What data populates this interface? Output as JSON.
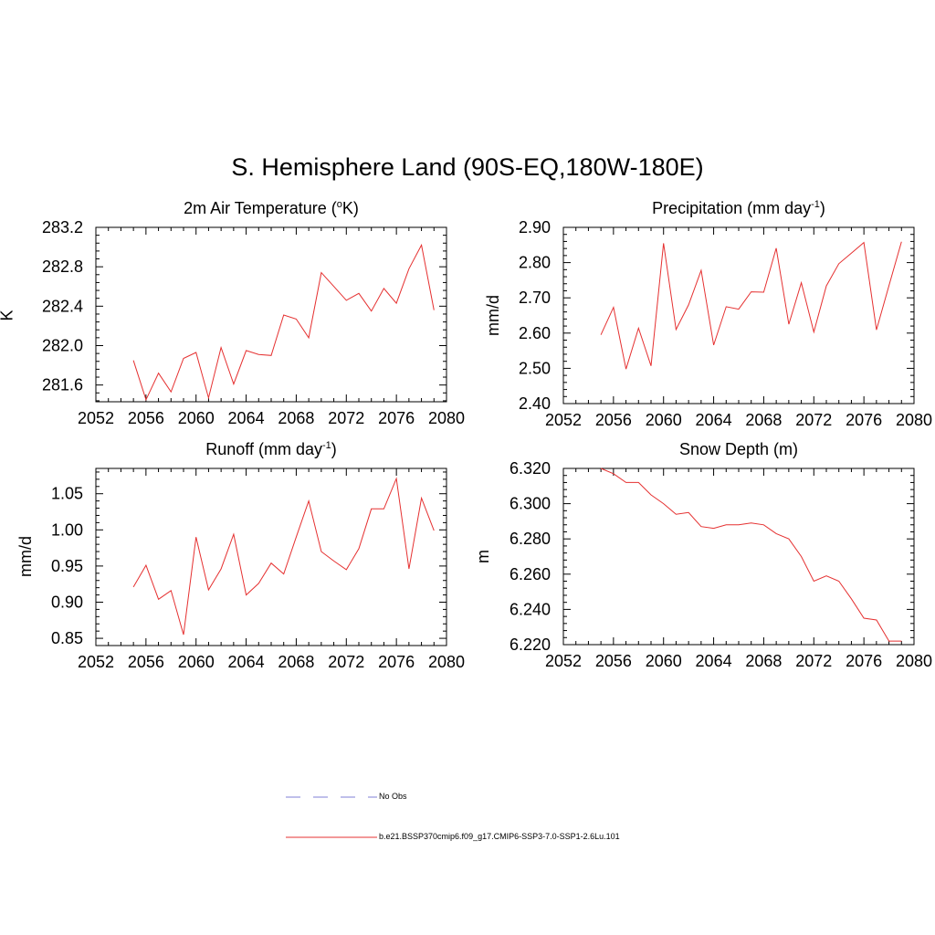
{
  "page_title": "S. Hemisphere Land (90S-EQ,180W-180E)",
  "legend": [
    {
      "label": "No Obs",
      "color": "#9999dd",
      "style": "dashed"
    },
    {
      "label": "b.e21.BSSP370cmip6.f09_g17.CMIP6-SSP3-7.0-SSP1-2.6Lu.101",
      "color": "#e53030",
      "style": "solid"
    }
  ],
  "chart_data": [
    {
      "type": "line",
      "title": "2m Air Temperature (",
      "title_sup": "o",
      "title_after": "K)",
      "ylabel": "K",
      "xlim": [
        2052,
        2080
      ],
      "ylim": [
        281.43,
        283.2
      ],
      "xticks": [
        "2052",
        "2056",
        "2060",
        "2064",
        "2068",
        "2072",
        "2076",
        "2080"
      ],
      "yticks": [
        "281.6",
        "282.0",
        "282.4",
        "282.8",
        "283.2"
      ],
      "series": [
        {
          "color": "#e53030",
          "x": [
            2055,
            2056,
            2057,
            2058,
            2059,
            2060,
            2061,
            2062,
            2063,
            2064,
            2065,
            2066,
            2067,
            2068,
            2069,
            2070,
            2071,
            2072,
            2073,
            2074,
            2075,
            2076,
            2077,
            2078,
            2079
          ],
          "values": [
            281.85,
            281.45,
            281.72,
            281.53,
            281.87,
            281.93,
            281.47,
            281.98,
            281.61,
            281.95,
            281.91,
            281.9,
            282.31,
            282.27,
            282.08,
            282.74,
            282.6,
            282.46,
            282.53,
            282.35,
            282.58,
            282.43,
            282.78,
            283.02,
            282.36
          ]
        }
      ]
    },
    {
      "type": "line",
      "title": "Precipitation (mm day",
      "title_sup": "-1",
      "title_after": ")",
      "ylabel": "mm/d",
      "xlim": [
        2052,
        2080
      ],
      "ylim": [
        2.4,
        2.9
      ],
      "xticks": [
        "2052",
        "2056",
        "2060",
        "2064",
        "2068",
        "2072",
        "2076",
        "2080"
      ],
      "yticks": [
        "2.40",
        "2.50",
        "2.60",
        "2.70",
        "2.80",
        "2.90"
      ],
      "series": [
        {
          "color": "#e53030",
          "x": [
            2055,
            2056,
            2057,
            2058,
            2059,
            2060,
            2061,
            2062,
            2063,
            2064,
            2065,
            2066,
            2067,
            2068,
            2069,
            2070,
            2071,
            2072,
            2073,
            2074,
            2075,
            2076,
            2077,
            2078,
            2079
          ],
          "values": [
            2.595,
            2.673,
            2.498,
            2.614,
            2.507,
            2.855,
            2.61,
            2.68,
            2.778,
            2.566,
            2.675,
            2.668,
            2.717,
            2.716,
            2.841,
            2.625,
            2.743,
            2.603,
            2.734,
            2.797,
            2.827,
            2.857,
            2.609,
            2.735,
            2.859
          ]
        }
      ]
    },
    {
      "type": "line",
      "title": "Runoff (mm day",
      "title_sup": "-1",
      "title_after": ")",
      "ylabel": "mm/d",
      "xlim": [
        2052,
        2080
      ],
      "ylim": [
        0.84,
        1.085
      ],
      "xticks": [
        "2052",
        "2056",
        "2060",
        "2064",
        "2068",
        "2072",
        "2076",
        "2080"
      ],
      "yticks": [
        "0.85",
        "0.90",
        "0.95",
        "1.00",
        "1.05"
      ],
      "series": [
        {
          "color": "#e53030",
          "x": [
            2055,
            2056,
            2057,
            2058,
            2059,
            2060,
            2061,
            2062,
            2063,
            2064,
            2065,
            2066,
            2067,
            2068,
            2069,
            2070,
            2071,
            2072,
            2073,
            2074,
            2075,
            2076,
            2077,
            2078,
            2079
          ],
          "values": [
            0.921,
            0.951,
            0.904,
            0.916,
            0.855,
            0.99,
            0.917,
            0.946,
            0.994,
            0.91,
            0.926,
            0.954,
            0.939,
            0.99,
            1.04,
            0.97,
            0.957,
            0.945,
            0.974,
            1.029,
            1.029,
            1.071,
            0.946,
            1.044,
            0.999
          ]
        }
      ]
    },
    {
      "type": "line",
      "title": "Snow Depth (m)",
      "title_sup": "",
      "title_after": "",
      "ylabel": "m",
      "xlim": [
        2052,
        2080
      ],
      "ylim": [
        6.22,
        6.32
      ],
      "xticks": [
        "2052",
        "2056",
        "2060",
        "2064",
        "2068",
        "2072",
        "2076",
        "2080"
      ],
      "yticks": [
        "6.220",
        "6.240",
        "6.260",
        "6.280",
        "6.300",
        "6.320"
      ],
      "series": [
        {
          "color": "#e53030",
          "x": [
            2055,
            2056,
            2057,
            2058,
            2059,
            2060,
            2061,
            2062,
            2063,
            2064,
            2065,
            2066,
            2067,
            2068,
            2069,
            2070,
            2071,
            2072,
            2073,
            2074,
            2075,
            2076,
            2077,
            2078,
            2079
          ],
          "values": [
            6.32,
            6.317,
            6.312,
            6.312,
            6.305,
            6.3,
            6.294,
            6.295,
            6.287,
            6.286,
            6.288,
            6.288,
            6.289,
            6.288,
            6.283,
            6.28,
            6.27,
            6.256,
            6.259,
            6.256,
            6.246,
            6.235,
            6.234,
            6.222,
            6.222
          ]
        }
      ]
    }
  ]
}
